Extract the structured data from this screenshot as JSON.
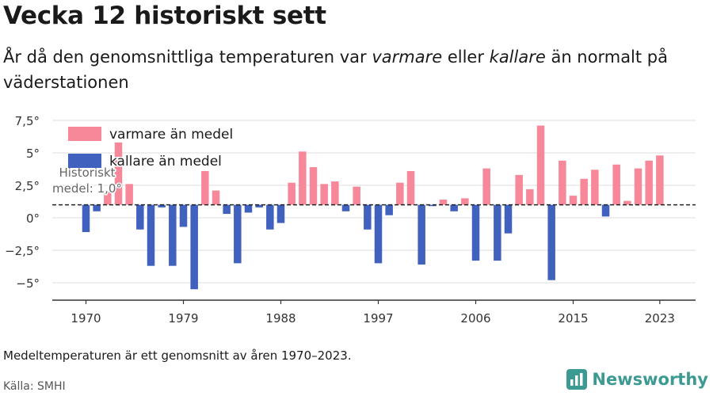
{
  "header": {
    "title": "Vecka 12 historiskt sett",
    "subtitle_before": "År då den genomsnittliga temperaturen var ",
    "subtitle_warm": "varmare",
    "subtitle_mid": " eller ",
    "subtitle_cold": "kallare",
    "subtitle_after": " än normalt på väderstationen"
  },
  "footer": {
    "note": "Medeltemperaturen är ett genomsnitt av åren 1970–2023.",
    "source": "Källa: SMHI",
    "brand": "Newsworthy",
    "brand_icon": "bar-chart-logo-icon"
  },
  "colors": {
    "warm": "#f7889a",
    "cold": "#4161bf",
    "grid": "#e3e3e3",
    "axis": "#333333",
    "brand": "#3c9a93"
  },
  "chart_data": {
    "type": "bar",
    "baseline": 1.0,
    "baseline_label": [
      "Historiskt",
      "medel: 1,0°"
    ],
    "ylim": [
      -6,
      8
    ],
    "yticks": [
      -5,
      -2.5,
      0,
      2.5,
      5,
      7.5
    ],
    "ytick_labels": [
      "−5°",
      "−2,5°",
      "0°",
      "2,5°",
      "5°",
      "7,5°"
    ],
    "xticks": [
      1970,
      1979,
      1988,
      1997,
      2006,
      2015,
      2023
    ],
    "xtick_labels": [
      "1970",
      "1979",
      "1988",
      "1997",
      "2006",
      "2015",
      "2023"
    ],
    "legend": [
      {
        "label": "varmare än medel",
        "color": "#f7889a"
      },
      {
        "label": "kallare än medel",
        "color": "#4161bf"
      }
    ],
    "legend_position": "top-left",
    "grid": true,
    "years": [
      1970,
      1971,
      1972,
      1973,
      1974,
      1975,
      1976,
      1977,
      1978,
      1979,
      1980,
      1981,
      1982,
      1983,
      1984,
      1985,
      1986,
      1987,
      1988,
      1989,
      1990,
      1991,
      1992,
      1993,
      1994,
      1995,
      1996,
      1997,
      1998,
      1999,
      2000,
      2001,
      2002,
      2003,
      2004,
      2005,
      2006,
      2007,
      2008,
      2009,
      2010,
      2011,
      2012,
      2013,
      2014,
      2015,
      2016,
      2017,
      2018,
      2019,
      2020,
      2021,
      2022,
      2023
    ],
    "values": [
      -1.1,
      0.5,
      2.0,
      5.8,
      2.6,
      -0.9,
      -3.7,
      0.8,
      -3.7,
      -0.7,
      -5.5,
      3.6,
      2.1,
      0.3,
      -3.5,
      0.4,
      0.8,
      -0.9,
      -0.4,
      2.7,
      5.1,
      3.9,
      2.6,
      2.8,
      0.5,
      2.4,
      -0.9,
      -3.5,
      0.2,
      2.7,
      3.6,
      -3.6,
      0.9,
      1.4,
      0.5,
      1.5,
      -3.3,
      3.8,
      -3.3,
      -1.2,
      3.3,
      2.2,
      7.1,
      -4.8,
      4.4,
      1.7,
      3.0,
      3.7,
      0.1,
      4.1,
      1.3,
      3.8,
      4.4,
      4.8
    ]
  }
}
